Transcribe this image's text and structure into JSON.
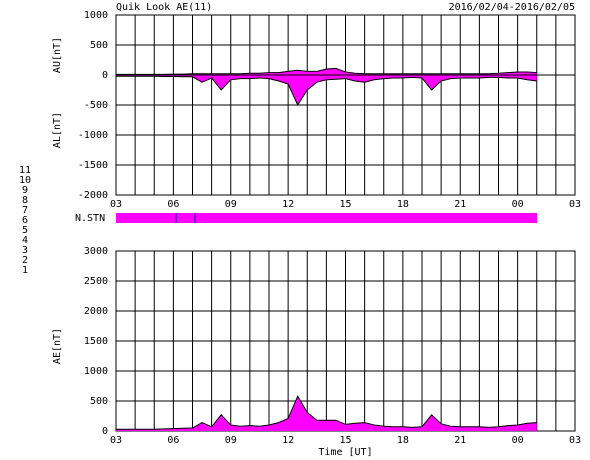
{
  "header": {
    "title": "Quik Look AE(11)",
    "date_range": "2016/02/04-2016/02/05"
  },
  "station_bar": {
    "label": "N.STN",
    "color": "#ff00ff"
  },
  "station_legend": [
    {
      "text": "11",
      "color": "#00d8d8"
    },
    {
      "text": "10",
      "color": "#ff00ff"
    },
    {
      "text": "9",
      "color": "#3030ff"
    },
    {
      "text": "8",
      "color": "#f0e090"
    },
    {
      "text": "7",
      "color": "#d8d800"
    },
    {
      "text": "6",
      "color": "#ff0000"
    },
    {
      "text": "5",
      "color": "#d0d0d0"
    },
    {
      "text": "4",
      "color": "#a0a0a0"
    },
    {
      "text": "3",
      "color": "#008080"
    },
    {
      "text": "2",
      "color": "#a000a0"
    },
    {
      "text": "1",
      "color": "#0000c0"
    }
  ],
  "chart_data": [
    {
      "type": "area",
      "ylabels": [
        "AU[nT]",
        "AL[nT]"
      ],
      "x": [
        0,
        0.5,
        1,
        1.5,
        2,
        2.5,
        3,
        3.5,
        4,
        4.5,
        5,
        5.5,
        6,
        6.5,
        7,
        7.5,
        8,
        8.5,
        9,
        9.5,
        10,
        10.5,
        11,
        11.5,
        12,
        12.5,
        13,
        13.5,
        14,
        14.5,
        15,
        15.5,
        16,
        16.5,
        17,
        17.5,
        18,
        18.5,
        19,
        19.5,
        20,
        20.5,
        21,
        21.5,
        22
      ],
      "series": [
        {
          "name": "AU",
          "color": "#ff00ff",
          "values": [
            10,
            10,
            10,
            10,
            10,
            10,
            15,
            15,
            20,
            20,
            20,
            20,
            20,
            20,
            30,
            30,
            40,
            40,
            60,
            80,
            60,
            60,
            100,
            110,
            50,
            30,
            20,
            20,
            20,
            20,
            20,
            20,
            20,
            20,
            20,
            20,
            20,
            20,
            20,
            20,
            30,
            40,
            50,
            50,
            40
          ]
        },
        {
          "name": "AL",
          "color": "#ff00ff",
          "values": [
            -20,
            -20,
            -20,
            -20,
            -20,
            -25,
            -25,
            -30,
            -30,
            -120,
            -50,
            -250,
            -80,
            -60,
            -60,
            -50,
            -60,
            -100,
            -150,
            -500,
            -250,
            -120,
            -80,
            -70,
            -60,
            -100,
            -120,
            -80,
            -60,
            -50,
            -50,
            -40,
            -50,
            -250,
            -100,
            -60,
            -50,
            -50,
            -50,
            -40,
            -40,
            -50,
            -50,
            -80,
            -100
          ]
        }
      ],
      "xlim": [
        0,
        24
      ],
      "xticks": [
        {
          "value": 0,
          "label": "03"
        },
        {
          "value": 3,
          "label": "06"
        },
        {
          "value": 6,
          "label": "09"
        },
        {
          "value": 9,
          "label": "12"
        },
        {
          "value": 12,
          "label": "15"
        },
        {
          "value": 15,
          "label": "18"
        },
        {
          "value": 18,
          "label": "21"
        },
        {
          "value": 21,
          "label": "00"
        },
        {
          "value": 24,
          "label": "03"
        }
      ],
      "ylim": [
        -2000,
        1000
      ],
      "yticks": [
        -2000,
        -1500,
        -1000,
        -500,
        0,
        500,
        1000
      ],
      "grid": true,
      "grid_step": 1
    },
    {
      "type": "area",
      "ylabels": [
        "AE[nT]"
      ],
      "xlabel": "Time [UT]",
      "x": [
        0,
        0.5,
        1,
        1.5,
        2,
        2.5,
        3,
        3.5,
        4,
        4.5,
        5,
        5.5,
        6,
        6.5,
        7,
        7.5,
        8,
        8.5,
        9,
        9.5,
        10,
        10.5,
        11,
        11.5,
        12,
        12.5,
        13,
        13.5,
        14,
        14.5,
        15,
        15.5,
        16,
        16.5,
        17,
        17.5,
        18,
        18.5,
        19,
        19.5,
        20,
        20.5,
        21,
        21.5,
        22
      ],
      "series": [
        {
          "name": "AE",
          "color": "#ff00ff",
          "values": [
            30,
            30,
            30,
            30,
            30,
            35,
            40,
            45,
            50,
            140,
            70,
            270,
            100,
            80,
            90,
            80,
            100,
            140,
            210,
            580,
            310,
            180,
            180,
            180,
            110,
            130,
            140,
            100,
            80,
            70,
            70,
            60,
            70,
            270,
            120,
            80,
            70,
            70,
            70,
            60,
            70,
            90,
            100,
            130,
            140
          ]
        }
      ],
      "xlim": [
        0,
        24
      ],
      "xticks": [
        {
          "value": 0,
          "label": "03"
        },
        {
          "value": 3,
          "label": "06"
        },
        {
          "value": 6,
          "label": "09"
        },
        {
          "value": 9,
          "label": "12"
        },
        {
          "value": 12,
          "label": "15"
        },
        {
          "value": 15,
          "label": "18"
        },
        {
          "value": 18,
          "label": "21"
        },
        {
          "value": 21,
          "label": "00"
        },
        {
          "value": 24,
          "label": "03"
        }
      ],
      "ylim": [
        0,
        3000
      ],
      "yticks": [
        0,
        500,
        1000,
        1500,
        2000,
        2500,
        3000
      ],
      "grid": true,
      "grid_step": 1
    }
  ]
}
